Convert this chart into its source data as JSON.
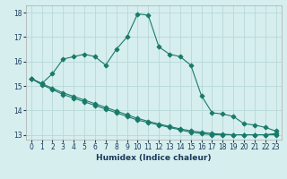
{
  "xlabel": "Humidex (Indice chaleur)",
  "bg_color": "#d6eeee",
  "grid_color": "#b8d8d8",
  "line_color": "#1a7a6a",
  "xlim": [
    -0.5,
    23.5
  ],
  "ylim": [
    12.8,
    18.3
  ],
  "xticks": [
    0,
    1,
    2,
    3,
    4,
    5,
    6,
    7,
    8,
    9,
    10,
    11,
    12,
    13,
    14,
    15,
    16,
    17,
    18,
    19,
    20,
    21,
    22,
    23
  ],
  "yticks": [
    13,
    14,
    15,
    16,
    17,
    18
  ],
  "curve1_x": [
    0,
    1,
    2,
    3,
    4,
    5,
    6,
    7,
    8,
    9,
    10,
    11,
    12,
    13,
    14,
    15,
    16,
    17,
    18,
    19,
    20,
    21,
    22,
    23
  ],
  "curve1_y": [
    15.3,
    15.1,
    15.5,
    16.1,
    16.2,
    16.3,
    16.2,
    15.85,
    16.5,
    17.0,
    17.95,
    17.9,
    16.6,
    16.3,
    16.2,
    15.85,
    14.6,
    13.9,
    13.85,
    13.75,
    13.45,
    13.4,
    13.3,
    13.15
  ],
  "curve2_x": [
    0,
    1,
    2,
    3,
    4,
    5,
    6,
    7,
    8,
    9,
    10,
    11,
    12,
    13,
    14,
    15,
    16,
    17,
    18,
    19,
    20,
    21,
    22,
    23
  ],
  "curve2_y": [
    15.3,
    15.05,
    14.85,
    14.65,
    14.5,
    14.35,
    14.2,
    14.05,
    13.9,
    13.75,
    13.6,
    13.5,
    13.4,
    13.3,
    13.2,
    13.1,
    13.05,
    13.0,
    13.0,
    13.0,
    13.0,
    13.0,
    13.0,
    13.05
  ],
  "curve3_x": [
    0,
    1,
    2,
    3,
    4,
    5,
    6,
    7,
    8,
    9,
    10,
    11,
    12,
    13,
    14,
    15,
    16,
    17,
    18,
    19,
    20,
    21,
    22,
    23
  ],
  "curve3_y": [
    15.3,
    15.1,
    14.9,
    14.72,
    14.57,
    14.42,
    14.27,
    14.12,
    13.97,
    13.82,
    13.67,
    13.55,
    13.44,
    13.34,
    13.24,
    13.16,
    13.1,
    13.05,
    13.02,
    13.0,
    13.0,
    13.0,
    13.0,
    13.0
  ]
}
